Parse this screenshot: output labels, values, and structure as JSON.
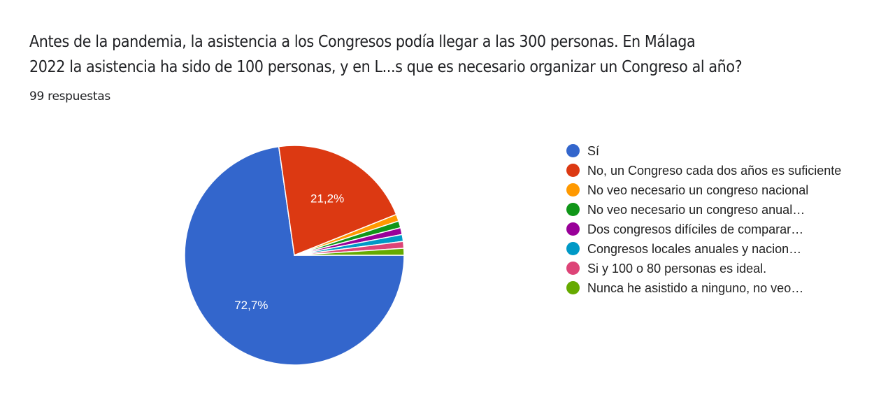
{
  "question": {
    "title_line1": "Antes de la pandemia, la asistencia a los Congresos podía llegar a las 300 personas. En Málaga",
    "title_line2": "2022 la asistencia ha sido de 100 personas, y en L...s que es necesario organizar un Congreso al año?",
    "responses": "99 respuestas"
  },
  "chart_data": {
    "type": "pie",
    "title": "Antes de la pandemia, la asistencia a los Congresos podía llegar a las 300 personas. En Málaga 2022 la asistencia ha sido de 100 personas, y en L...s que es necesario organizar un Congreso al año?",
    "total_responses": 99,
    "legend_position": "right",
    "categories": [
      "Sí",
      "No, un Congreso cada dos años es suficiente",
      "No veo necesario un congreso nacional",
      "No veo necesario un congreso anual…",
      "Dos congresos difíciles de comparar…",
      "Congresos locales anuales y nacion…",
      "Si y 100 o 80 personas es ideal.",
      "Nunca he asistido a ninguno, no veo…"
    ],
    "values": [
      72.7,
      21.2,
      1.0,
      1.0,
      1.0,
      1.0,
      1.0,
      1.0
    ],
    "counts": [
      72,
      21,
      1,
      1,
      1,
      1,
      1,
      1
    ],
    "data_labels": [
      "72,7%",
      "21,2%",
      "",
      "",
      "",
      "",
      "",
      ""
    ],
    "colors": [
      "#3366cc",
      "#dc3912",
      "#ff9900",
      "#109618",
      "#990099",
      "#0099c6",
      "#dd4477",
      "#66aa00"
    ]
  }
}
